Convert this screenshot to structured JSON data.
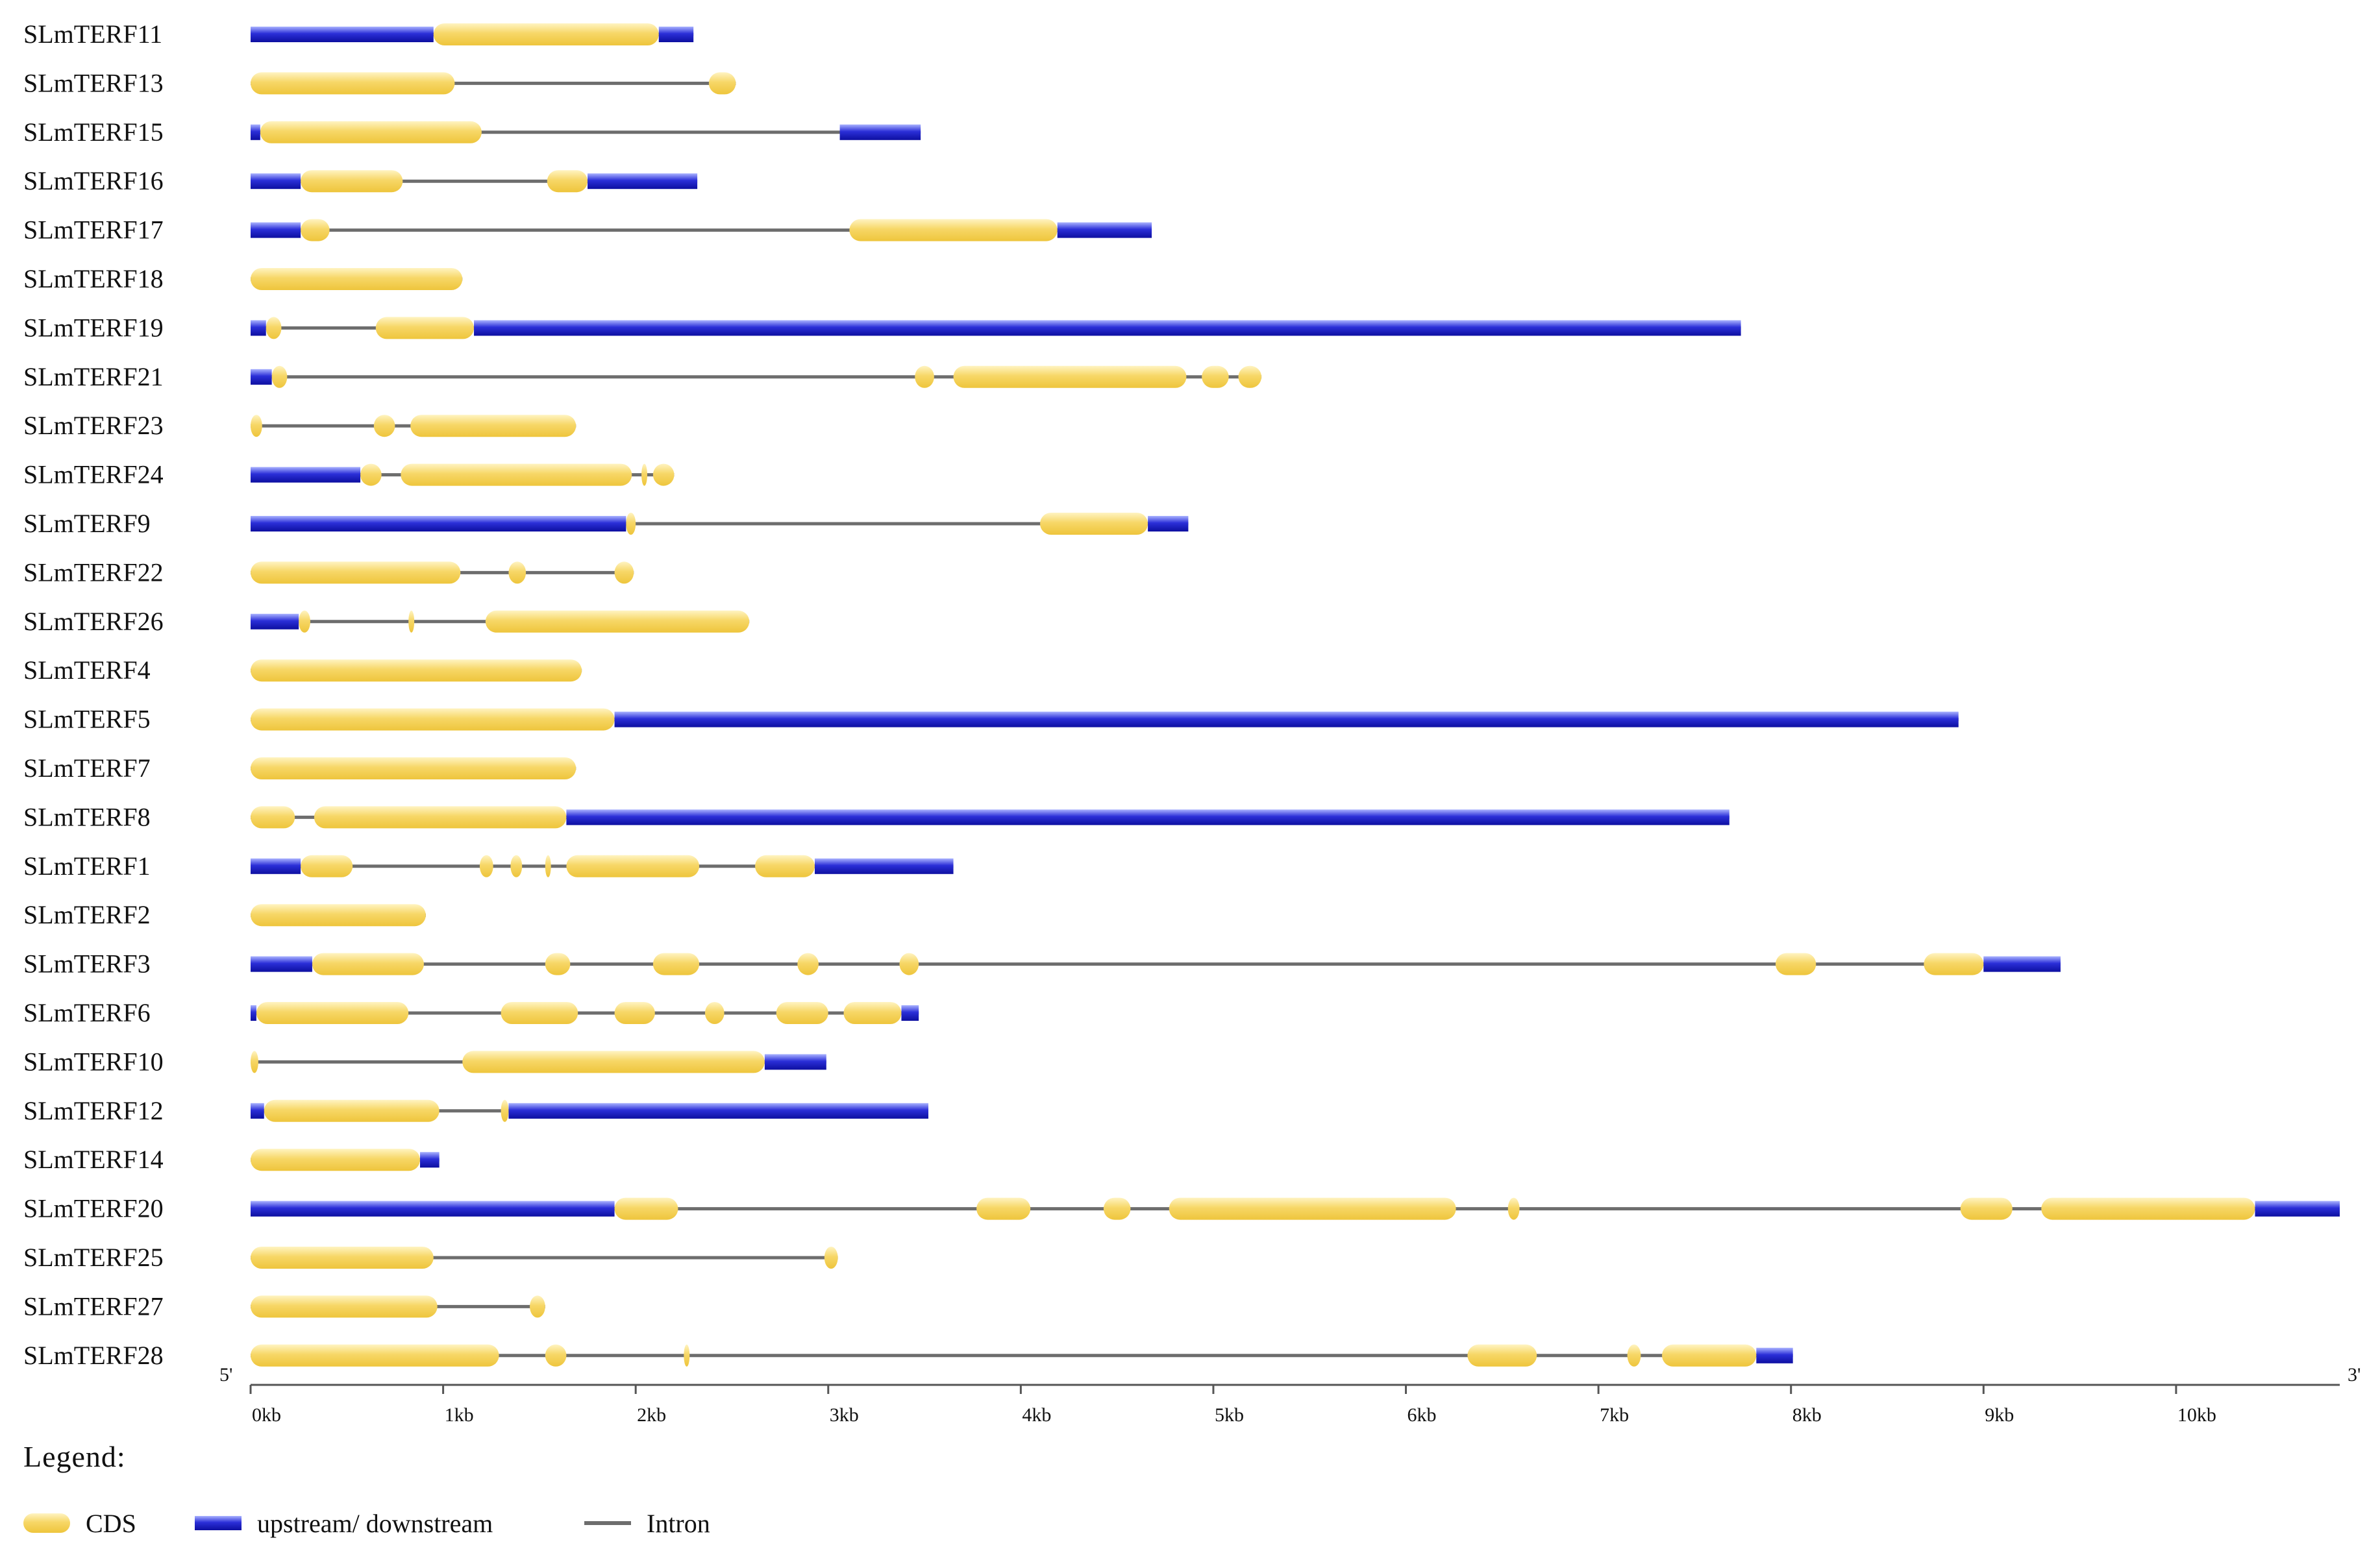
{
  "chart_data": {
    "type": "gene-structure",
    "title": "",
    "xlabel": "",
    "x_unit": "kb",
    "xlim": [
      0,
      10.85
    ],
    "xticks": [
      "0kb",
      "1kb",
      "2kb",
      "3kb",
      "4kb",
      "5kb",
      "6kb",
      "7kb",
      "8kb",
      "9kb",
      "10kb"
    ],
    "axis_start_label": "5'",
    "axis_end_label": "3'",
    "legend_position": "bottom-left",
    "genes": [
      {
        "name": "SLmTERF11",
        "length": 2.3,
        "features": [
          {
            "type": "utr",
            "start": 0,
            "end": 0.95
          },
          {
            "type": "cds",
            "start": 0.95,
            "end": 2.12
          },
          {
            "type": "utr",
            "start": 2.12,
            "end": 2.3
          }
        ]
      },
      {
        "name": "SLmTERF13",
        "length": 2.52,
        "features": [
          {
            "type": "cds",
            "start": 0,
            "end": 1.06
          },
          {
            "type": "cds",
            "start": 2.38,
            "end": 2.52
          }
        ]
      },
      {
        "name": "SLmTERF15",
        "length": 3.48,
        "features": [
          {
            "type": "utr",
            "start": 0,
            "end": 0.05
          },
          {
            "type": "cds",
            "start": 0.05,
            "end": 1.2
          },
          {
            "type": "utr",
            "start": 3.06,
            "end": 3.48
          }
        ]
      },
      {
        "name": "SLmTERF16",
        "length": 2.32,
        "features": [
          {
            "type": "utr",
            "start": 0,
            "end": 0.26
          },
          {
            "type": "cds",
            "start": 0.26,
            "end": 0.79
          },
          {
            "type": "cds",
            "start": 1.54,
            "end": 1.75
          },
          {
            "type": "utr",
            "start": 1.75,
            "end": 2.32
          }
        ]
      },
      {
        "name": "SLmTERF17",
        "length": 4.68,
        "features": [
          {
            "type": "utr",
            "start": 0,
            "end": 0.26
          },
          {
            "type": "cds",
            "start": 0.26,
            "end": 0.41
          },
          {
            "type": "cds",
            "start": 3.11,
            "end": 4.19
          },
          {
            "type": "utr",
            "start": 4.19,
            "end": 4.68
          }
        ]
      },
      {
        "name": "SLmTERF18",
        "length": 1.1,
        "features": [
          {
            "type": "cds",
            "start": 0,
            "end": 1.1
          }
        ]
      },
      {
        "name": "SLmTERF19",
        "length": 7.74,
        "features": [
          {
            "type": "utr",
            "start": 0,
            "end": 0.08
          },
          {
            "type": "cds",
            "start": 0.08,
            "end": 0.16
          },
          {
            "type": "cds",
            "start": 0.65,
            "end": 1.16
          },
          {
            "type": "utr",
            "start": 1.16,
            "end": 7.74
          }
        ]
      },
      {
        "name": "SLmTERF21",
        "length": 5.25,
        "features": [
          {
            "type": "utr",
            "start": 0,
            "end": 0.11
          },
          {
            "type": "cds",
            "start": 0.11,
            "end": 0.19
          },
          {
            "type": "cds",
            "start": 3.45,
            "end": 3.55
          },
          {
            "type": "cds",
            "start": 3.65,
            "end": 4.86
          },
          {
            "type": "cds",
            "start": 4.94,
            "end": 5.08
          },
          {
            "type": "cds",
            "start": 5.13,
            "end": 5.25
          }
        ]
      },
      {
        "name": "SLmTERF23",
        "length": 1.69,
        "features": [
          {
            "type": "cds",
            "start": 0,
            "end": 0.06
          },
          {
            "type": "cds",
            "start": 0.64,
            "end": 0.75
          },
          {
            "type": "cds",
            "start": 0.83,
            "end": 1.69
          }
        ]
      },
      {
        "name": "SLmTERF24",
        "length": 2.2,
        "features": [
          {
            "type": "utr",
            "start": 0,
            "end": 0.57
          },
          {
            "type": "cds",
            "start": 0.57,
            "end": 0.68
          },
          {
            "type": "cds",
            "start": 0.78,
            "end": 1.98
          },
          {
            "type": "cds",
            "start": 2.03,
            "end": 2.06
          },
          {
            "type": "cds",
            "start": 2.09,
            "end": 2.2
          }
        ]
      },
      {
        "name": "SLmTERF9",
        "length": 4.87,
        "features": [
          {
            "type": "utr",
            "start": 0,
            "end": 1.95
          },
          {
            "type": "cds",
            "start": 1.95,
            "end": 2.0
          },
          {
            "type": "cds",
            "start": 4.1,
            "end": 4.66
          },
          {
            "type": "utr",
            "start": 4.66,
            "end": 4.87
          }
        ]
      },
      {
        "name": "SLmTERF22",
        "length": 1.99,
        "features": [
          {
            "type": "cds",
            "start": 0,
            "end": 1.09
          },
          {
            "type": "cds",
            "start": 1.34,
            "end": 1.43
          },
          {
            "type": "cds",
            "start": 1.89,
            "end": 1.99
          }
        ]
      },
      {
        "name": "SLmTERF26",
        "length": 2.59,
        "features": [
          {
            "type": "utr",
            "start": 0,
            "end": 0.25
          },
          {
            "type": "cds",
            "start": 0.25,
            "end": 0.31
          },
          {
            "type": "cds",
            "start": 0.82,
            "end": 0.85
          },
          {
            "type": "cds",
            "start": 1.22,
            "end": 2.59
          }
        ]
      },
      {
        "name": "SLmTERF4",
        "length": 1.72,
        "features": [
          {
            "type": "cds",
            "start": 0,
            "end": 1.72
          }
        ]
      },
      {
        "name": "SLmTERF5",
        "length": 8.87,
        "features": [
          {
            "type": "cds",
            "start": 0,
            "end": 1.89
          },
          {
            "type": "utr",
            "start": 1.89,
            "end": 8.87
          }
        ]
      },
      {
        "name": "SLmTERF7",
        "length": 1.69,
        "features": [
          {
            "type": "cds",
            "start": 0,
            "end": 1.69
          }
        ]
      },
      {
        "name": "SLmTERF8",
        "length": 7.68,
        "features": [
          {
            "type": "cds",
            "start": 0,
            "end": 0.23
          },
          {
            "type": "cds",
            "start": 0.33,
            "end": 1.64
          },
          {
            "type": "utr",
            "start": 1.64,
            "end": 7.68
          }
        ]
      },
      {
        "name": "SLmTERF1",
        "length": 3.65,
        "features": [
          {
            "type": "utr",
            "start": 0,
            "end": 0.26
          },
          {
            "type": "cds",
            "start": 0.26,
            "end": 0.53
          },
          {
            "type": "cds",
            "start": 1.19,
            "end": 1.26
          },
          {
            "type": "cds",
            "start": 1.35,
            "end": 1.41
          },
          {
            "type": "cds",
            "start": 1.53,
            "end": 1.56
          },
          {
            "type": "cds",
            "start": 1.64,
            "end": 2.33
          },
          {
            "type": "cds",
            "start": 2.62,
            "end": 2.93
          },
          {
            "type": "utr",
            "start": 2.93,
            "end": 3.65
          }
        ]
      },
      {
        "name": "SLmTERF2",
        "length": 0.91,
        "features": [
          {
            "type": "cds",
            "start": 0,
            "end": 0.91
          }
        ]
      },
      {
        "name": "SLmTERF3",
        "length": 9.4,
        "features": [
          {
            "type": "utr",
            "start": 0,
            "end": 0.32
          },
          {
            "type": "cds",
            "start": 0.32,
            "end": 0.9
          },
          {
            "type": "cds",
            "start": 1.53,
            "end": 1.66
          },
          {
            "type": "cds",
            "start": 2.09,
            "end": 2.33
          },
          {
            "type": "cds",
            "start": 2.84,
            "end": 2.95
          },
          {
            "type": "cds",
            "start": 3.37,
            "end": 3.47
          },
          {
            "type": "cds",
            "start": 7.92,
            "end": 8.13
          },
          {
            "type": "cds",
            "start": 8.69,
            "end": 9.0
          },
          {
            "type": "utr",
            "start": 9.0,
            "end": 9.4
          }
        ]
      },
      {
        "name": "SLmTERF6",
        "length": 3.47,
        "features": [
          {
            "type": "utr",
            "start": 0,
            "end": 0.03
          },
          {
            "type": "cds",
            "start": 0.03,
            "end": 0.82
          },
          {
            "type": "cds",
            "start": 1.3,
            "end": 1.7
          },
          {
            "type": "cds",
            "start": 1.89,
            "end": 2.1
          },
          {
            "type": "cds",
            "start": 2.36,
            "end": 2.46
          },
          {
            "type": "cds",
            "start": 2.73,
            "end": 3.0
          },
          {
            "type": "cds",
            "start": 3.08,
            "end": 3.38
          },
          {
            "type": "utr",
            "start": 3.38,
            "end": 3.47
          }
        ]
      },
      {
        "name": "SLmTERF10",
        "length": 2.99,
        "features": [
          {
            "type": "cds",
            "start": 0,
            "end": 0.04
          },
          {
            "type": "cds",
            "start": 1.1,
            "end": 2.67
          },
          {
            "type": "utr",
            "start": 2.67,
            "end": 2.99
          }
        ]
      },
      {
        "name": "SLmTERF12",
        "length": 3.52,
        "features": [
          {
            "type": "utr",
            "start": 0,
            "end": 0.07
          },
          {
            "type": "cds",
            "start": 0.07,
            "end": 0.98
          },
          {
            "type": "cds",
            "start": 1.3,
            "end": 1.34
          },
          {
            "type": "utr",
            "start": 1.34,
            "end": 3.52
          }
        ]
      },
      {
        "name": "SLmTERF14",
        "length": 0.98,
        "features": [
          {
            "type": "cds",
            "start": 0,
            "end": 0.88
          },
          {
            "type": "utr",
            "start": 0.88,
            "end": 0.98
          }
        ]
      },
      {
        "name": "SLmTERF20",
        "length": 10.85,
        "features": [
          {
            "type": "utr",
            "start": 0,
            "end": 1.89
          },
          {
            "type": "cds",
            "start": 1.89,
            "end": 2.22
          },
          {
            "type": "cds",
            "start": 3.77,
            "end": 4.05
          },
          {
            "type": "cds",
            "start": 4.43,
            "end": 4.57
          },
          {
            "type": "cds",
            "start": 4.77,
            "end": 6.26
          },
          {
            "type": "cds",
            "start": 6.53,
            "end": 6.59
          },
          {
            "type": "cds",
            "start": 8.88,
            "end": 9.15
          },
          {
            "type": "cds",
            "start": 9.3,
            "end": 10.41
          },
          {
            "type": "utr",
            "start": 10.41,
            "end": 10.85
          }
        ]
      },
      {
        "name": "SLmTERF25",
        "length": 3.05,
        "features": [
          {
            "type": "cds",
            "start": 0,
            "end": 0.95
          },
          {
            "type": "cds",
            "start": 2.98,
            "end": 3.05
          }
        ]
      },
      {
        "name": "SLmTERF27",
        "length": 1.53,
        "features": [
          {
            "type": "cds",
            "start": 0,
            "end": 0.97
          },
          {
            "type": "cds",
            "start": 1.45,
            "end": 1.53
          }
        ]
      },
      {
        "name": "SLmTERF28",
        "length": 8.01,
        "features": [
          {
            "type": "cds",
            "start": 0,
            "end": 1.29
          },
          {
            "type": "cds",
            "start": 1.53,
            "end": 1.64
          },
          {
            "type": "cds",
            "start": 2.25,
            "end": 2.28
          },
          {
            "type": "cds",
            "start": 6.32,
            "end": 6.68
          },
          {
            "type": "cds",
            "start": 7.15,
            "end": 7.22
          },
          {
            "type": "cds",
            "start": 7.33,
            "end": 7.82
          },
          {
            "type": "utr",
            "start": 7.82,
            "end": 8.01
          }
        ]
      }
    ]
  },
  "legend": {
    "title": "Legend:",
    "items": [
      {
        "key": "cds",
        "label": "CDS"
      },
      {
        "key": "utr",
        "label": "upstream/ downstream"
      },
      {
        "key": "intron",
        "label": "Intron"
      }
    ]
  },
  "colors": {
    "cds_light": "#fff4c2",
    "cds_mid": "#f7d767",
    "cds_dark": "#eec53c",
    "utr_light": "#aab3ff",
    "utr_mid": "#2b2fd8",
    "utr_dark": "#0d0fa0",
    "intron": "#6d6d6d",
    "axis": "#555555",
    "text": "#111111"
  }
}
